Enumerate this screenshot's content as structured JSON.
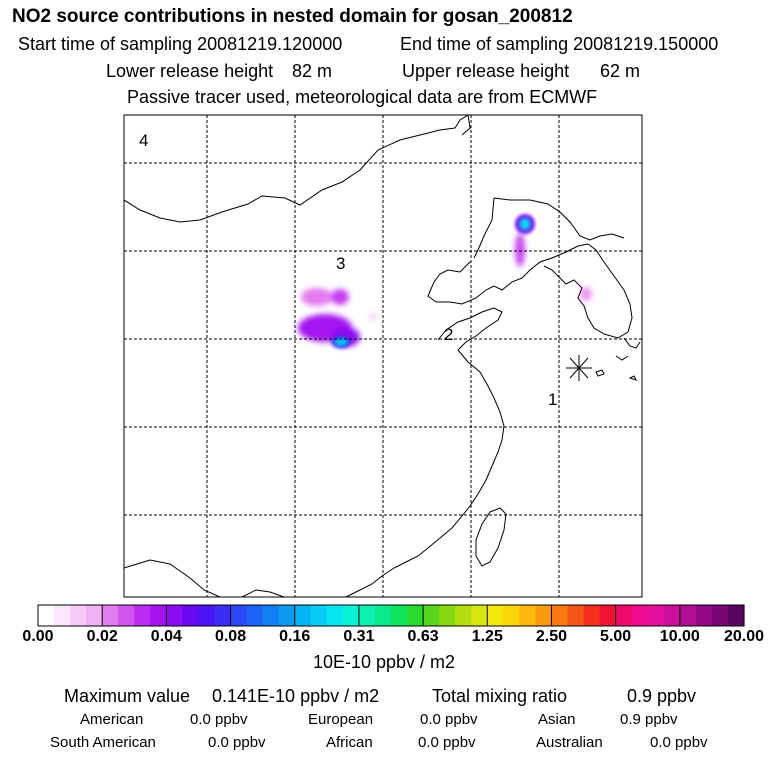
{
  "header": {
    "title": "NO2 source contributions in nested domain for gosan_200812",
    "start_label": "Start time of sampling 20081219.120000",
    "end_label": "End time of sampling 20081219.150000",
    "lower_label": "Lower release height",
    "lower_value": "82 m",
    "upper_label": "Upper release height",
    "upper_value": "62 m",
    "note": "Passive tracer used, meteorological data are from ECMWF"
  },
  "map": {
    "region_labels": [
      "1",
      "2",
      "3",
      "4"
    ],
    "receptor_symbol": "✳"
  },
  "colorbar": {
    "ticks": [
      "0.00",
      "0.02",
      "0.04",
      "0.08",
      "0.16",
      "0.31",
      "0.63",
      "1.25",
      "2.50",
      "5.00",
      "10.00",
      "20.00"
    ],
    "unit": "10E-10 ppbv / m2",
    "colors": [
      "#ffffff",
      "#fbe6fb",
      "#f6ccf7",
      "#f0b0f4",
      "#e07ef0",
      "#cf55ee",
      "#bb2cf0",
      "#a612ef",
      "#8c0cf2",
      "#6a0af3",
      "#4b14f5",
      "#3a2ef5",
      "#2a48f5",
      "#1d63f3",
      "#127ff2",
      "#0c9af1",
      "#07b4f2",
      "#05cdf3",
      "#05e6ef",
      "#08f2d6",
      "#0cf0b0",
      "#0bea8a",
      "#12e45c",
      "#29db2c",
      "#5ad51d",
      "#88d810",
      "#b4df0e",
      "#d7e60c",
      "#f2e80a",
      "#fbd50b",
      "#fbba0c",
      "#fa9a0e",
      "#f97a12",
      "#f55617",
      "#f2301c",
      "#ee1432",
      "#f00a6a",
      "#f00c8e",
      "#e40f9a",
      "#cc0e9c",
      "#b10d95",
      "#94098a",
      "#780776",
      "#5a045c"
    ]
  },
  "stats": {
    "max_label": "Maximum value",
    "max_value": "0.141E-10 ppbv / m2",
    "total_label": "Total mixing ratio",
    "total_value": "0.9 ppbv",
    "sources": [
      {
        "name": "American",
        "value": "0.0 ppbv"
      },
      {
        "name": "European",
        "value": "0.0 ppbv"
      },
      {
        "name": "Asian",
        "value": "0.9 ppbv"
      },
      {
        "name": "South American",
        "value": "0.0 ppbv"
      },
      {
        "name": "African",
        "value": "0.0 ppbv"
      },
      {
        "name": "Australian",
        "value": "0.0 ppbv"
      }
    ]
  }
}
